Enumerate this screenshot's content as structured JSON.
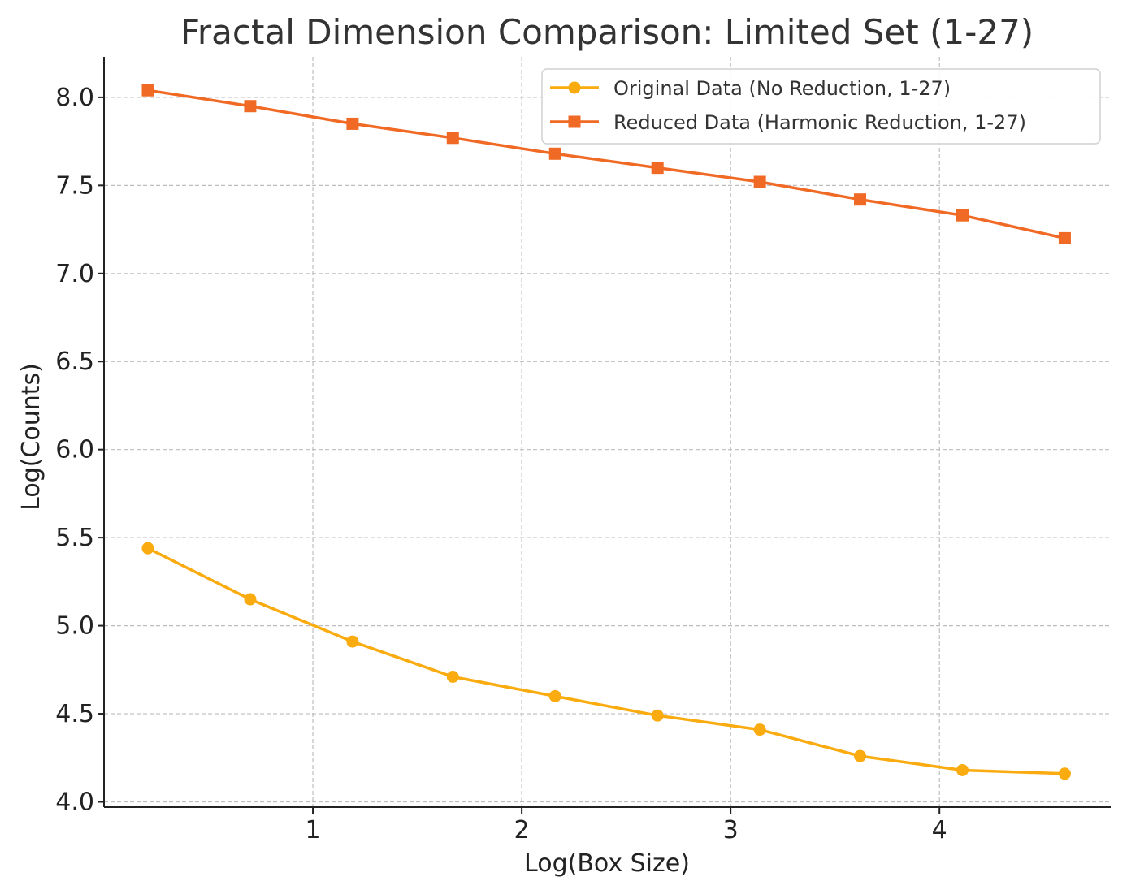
{
  "chart_data": {
    "type": "line",
    "title": "Fractal Dimension Comparison: Limited Set (1-27)",
    "xlabel": "Log(Box Size)",
    "ylabel": "Log(Counts)",
    "xlim": [
      0.0,
      4.82
    ],
    "ylim": [
      3.97,
      8.23
    ],
    "xticks": [
      1,
      2,
      3,
      4
    ],
    "xtick_labels": [
      "1",
      "2",
      "3",
      "4"
    ],
    "yticks": [
      4.0,
      4.5,
      5.0,
      5.5,
      6.0,
      6.5,
      7.0,
      7.5,
      8.0
    ],
    "ytick_labels": [
      "4.0",
      "4.5",
      "5.0",
      "5.5",
      "6.0",
      "6.5",
      "7.0",
      "7.5",
      "8.0"
    ],
    "grid": true,
    "legend_position": "top-right",
    "x": [
      0.21,
      0.7,
      1.19,
      1.67,
      2.16,
      2.65,
      3.14,
      3.62,
      4.11,
      4.6
    ],
    "series": [
      {
        "name": "Original Data (No Reduction, 1-27)",
        "color": "#f9ab0f",
        "marker": "circle",
        "values": [
          5.44,
          5.15,
          4.91,
          4.71,
          4.6,
          4.49,
          4.41,
          4.26,
          4.18,
          4.16
        ]
      },
      {
        "name": "Reduced Data (Harmonic Reduction, 1-27)",
        "color": "#f06a25",
        "marker": "square",
        "values": [
          8.04,
          7.95,
          7.85,
          7.77,
          7.68,
          7.6,
          7.52,
          7.42,
          7.33,
          7.2
        ]
      }
    ]
  }
}
